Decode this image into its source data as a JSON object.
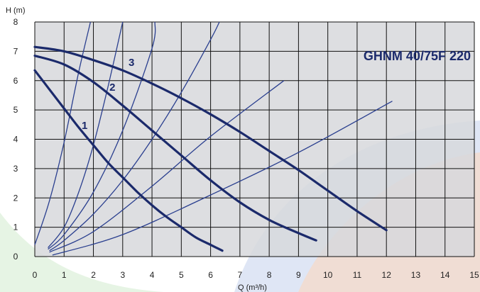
{
  "chart_data": {
    "type": "line",
    "title": "GHNM 40/75F 220",
    "xlabel": "Q (m³/h)",
    "ylabel": "H (m)",
    "xlim": [
      0,
      15
    ],
    "ylim": [
      0,
      8
    ],
    "x_ticks": [
      "0",
      "1",
      "2",
      "3",
      "4",
      "5",
      "6",
      "7",
      "8",
      "9",
      "10",
      "11",
      "12",
      "13",
      "14",
      "15"
    ],
    "y_ticks": [
      "0",
      "1",
      "2",
      "3",
      "4",
      "5",
      "6",
      "7",
      "8"
    ],
    "grid": true,
    "colors": {
      "plot_background": "#d7d8dc",
      "grid": "#111111",
      "pump_curve": "#1b2a6b",
      "system_curve": "#2a3f8f",
      "title": "#1b2a6b",
      "watermark_blue": "#c9d6ee",
      "watermark_orange": "#f6d9c6",
      "watermark_green": "#d6ecd2"
    },
    "series": [
      {
        "name": "1",
        "kind": "pump",
        "x": [
          0,
          0.5,
          1,
          1.5,
          2,
          2.5,
          3,
          3.5,
          4,
          4.5,
          5,
          5.5,
          6,
          6.4
        ],
        "y": [
          6.35,
          5.7,
          5.05,
          4.4,
          3.8,
          3.2,
          2.7,
          2.2,
          1.75,
          1.35,
          1.0,
          0.65,
          0.4,
          0.2
        ]
      },
      {
        "name": "2",
        "kind": "pump",
        "x": [
          0,
          1,
          2,
          3,
          4,
          5,
          6,
          7,
          8,
          9,
          9.6
        ],
        "y": [
          6.85,
          6.55,
          5.95,
          5.15,
          4.3,
          3.45,
          2.6,
          1.85,
          1.25,
          0.8,
          0.55
        ]
      },
      {
        "name": "3",
        "kind": "pump",
        "x": [
          0,
          1,
          2,
          3,
          4,
          5,
          6,
          7,
          8,
          9,
          10,
          11,
          12
        ],
        "y": [
          7.15,
          7.0,
          6.7,
          6.35,
          5.9,
          5.4,
          4.85,
          4.25,
          3.6,
          2.95,
          2.25,
          1.55,
          0.9
        ]
      },
      {
        "name": "",
        "kind": "system",
        "x": [
          0,
          0.5,
          1.0,
          1.5,
          1.9
        ],
        "y": [
          0.4,
          1.9,
          3.9,
          6.3,
          8.0
        ]
      },
      {
        "name": "",
        "kind": "system",
        "x": [
          0.45,
          1.0,
          1.5,
          2.0,
          2.5,
          3.0
        ],
        "y": [
          0.3,
          1.0,
          2.2,
          3.8,
          5.8,
          8.0
        ]
      },
      {
        "name": "",
        "kind": "system",
        "x": [
          0.45,
          1.0,
          2.0,
          3.0,
          4.0,
          4.1
        ],
        "y": [
          0.25,
          0.75,
          2.2,
          4.3,
          7.1,
          8.0
        ]
      },
      {
        "name": "",
        "kind": "system",
        "x": [
          0.5,
          1.0,
          2.0,
          3.0,
          4.0,
          5.0,
          6.0,
          6.3
        ],
        "y": [
          0.2,
          0.55,
          1.45,
          2.6,
          4.0,
          5.6,
          7.4,
          8.0
        ]
      },
      {
        "name": "",
        "kind": "system",
        "x": [
          0.5,
          2.0,
          4.0,
          6.0,
          8.5
        ],
        "y": [
          0.15,
          0.85,
          2.4,
          4.1,
          6.0
        ]
      },
      {
        "name": "",
        "kind": "system",
        "x": [
          0.6,
          3.0,
          6.0,
          9.0,
          12.2
        ],
        "y": [
          0.05,
          0.75,
          2.1,
          3.55,
          5.3
        ]
      }
    ],
    "curve_labels": [
      {
        "text": "1",
        "x": 1.7,
        "y": 4.35
      },
      {
        "text": "2",
        "x": 2.65,
        "y": 5.65
      },
      {
        "text": "3",
        "x": 3.3,
        "y": 6.5
      }
    ]
  }
}
